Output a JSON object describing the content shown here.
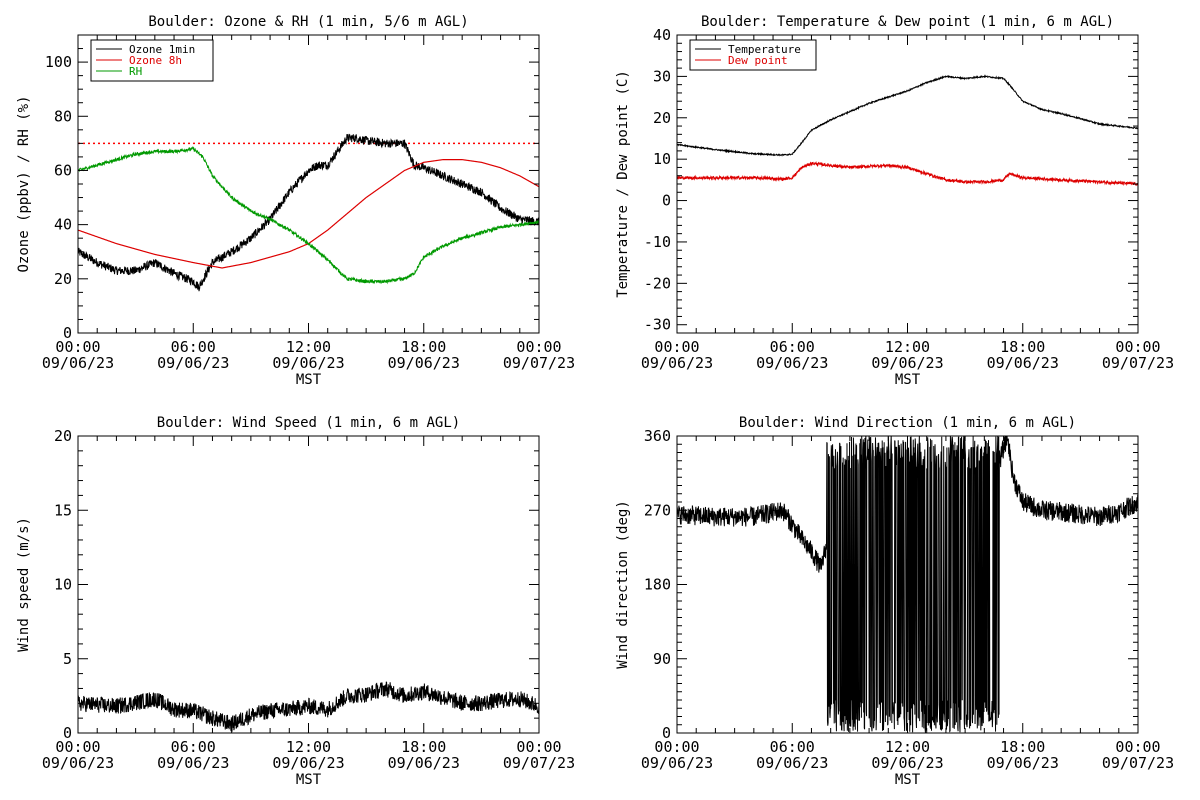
{
  "page": {
    "background": "#ffffff"
  },
  "chart_data": [
    {
      "id": "ozone_rh",
      "type": "line",
      "title": "Boulder: Ozone & RH (1 min, 5/6 m AGL)",
      "ylabel": "Ozone (ppbv) / RH (%)",
      "xlabel": "MST",
      "ylim": [
        0,
        110
      ],
      "yticks": [
        0,
        20,
        40,
        60,
        80,
        100
      ],
      "yminor": 5,
      "xlim": [
        0,
        24
      ],
      "xticks": [
        {
          "x": 0,
          "time": "00:00",
          "date": "09/06/23"
        },
        {
          "x": 6,
          "time": "06:00",
          "date": "09/06/23"
        },
        {
          "x": 12,
          "time": "12:00",
          "date": "09/06/23"
        },
        {
          "x": 18,
          "time": "18:00",
          "date": "09/06/23"
        },
        {
          "x": 24,
          "time": "00:00",
          "date": "09/07/23"
        }
      ],
      "legend_position": "top-left",
      "hline": {
        "y": 70,
        "color": "#ff0000",
        "style": "dotted"
      },
      "series": [
        {
          "name": "Ozone 1min",
          "color": "#000000",
          "noise": 1.6,
          "points": [
            [
              0,
              30
            ],
            [
              1,
              26
            ],
            [
              2,
              23
            ],
            [
              3,
              23
            ],
            [
              4,
              26
            ],
            [
              5,
              22
            ],
            [
              6,
              19
            ],
            [
              6.3,
              17
            ],
            [
              7,
              26
            ],
            [
              8,
              30
            ],
            [
              9,
              35
            ],
            [
              10,
              42
            ],
            [
              11,
              52
            ],
            [
              12,
              60
            ],
            [
              12.5,
              62
            ],
            [
              13,
              62
            ],
            [
              13.5,
              67
            ],
            [
              14,
              72
            ],
            [
              14.5,
              72
            ],
            [
              15,
              71
            ],
            [
              16,
              70
            ],
            [
              17,
              70
            ],
            [
              17.5,
              62
            ],
            [
              18,
              61
            ],
            [
              19,
              58
            ],
            [
              20,
              55
            ],
            [
              21,
              52
            ],
            [
              22,
              46
            ],
            [
              23,
              42
            ],
            [
              24,
              41
            ]
          ]
        },
        {
          "name": "Ozone 8h",
          "color": "#dd0000",
          "noise": 0,
          "points": [
            [
              0,
              38
            ],
            [
              2,
              33
            ],
            [
              4,
              29
            ],
            [
              6,
              26
            ],
            [
              7.5,
              24
            ],
            [
              9,
              26
            ],
            [
              11,
              30
            ],
            [
              12,
              33
            ],
            [
              13,
              38
            ],
            [
              14,
              44
            ],
            [
              15,
              50
            ],
            [
              16,
              55
            ],
            [
              17,
              60
            ],
            [
              18,
              63
            ],
            [
              19,
              64
            ],
            [
              19.5,
              64
            ],
            [
              20,
              64
            ],
            [
              21,
              63
            ],
            [
              22,
              61
            ],
            [
              23,
              58
            ],
            [
              24,
              54
            ]
          ]
        },
        {
          "name": "RH",
          "color": "#009900",
          "noise": 0.6,
          "points": [
            [
              0,
              60
            ],
            [
              1,
              62
            ],
            [
              2,
              64
            ],
            [
              3,
              66
            ],
            [
              4,
              67
            ],
            [
              5,
              67
            ],
            [
              6,
              68
            ],
            [
              6.5,
              65
            ],
            [
              7,
              58
            ],
            [
              8,
              50
            ],
            [
              9,
              45
            ],
            [
              10,
              42
            ],
            [
              11,
              38
            ],
            [
              12,
              33
            ],
            [
              13,
              27
            ],
            [
              14,
              20
            ],
            [
              15,
              19
            ],
            [
              16,
              19
            ],
            [
              17,
              20
            ],
            [
              17.5,
              22
            ],
            [
              18,
              28
            ],
            [
              19,
              32
            ],
            [
              20,
              35
            ],
            [
              21,
              37
            ],
            [
              22,
              39
            ],
            [
              23,
              40
            ],
            [
              24,
              41
            ]
          ]
        }
      ]
    },
    {
      "id": "temp_dew",
      "type": "line",
      "title": "Boulder: Temperature & Dew point (1 min, 6 m AGL)",
      "ylabel": "Temperature / Dew point (C)",
      "xlabel": "MST",
      "ylim": [
        -32,
        40
      ],
      "yticks": [
        -30,
        -20,
        -10,
        0,
        10,
        20,
        30,
        40
      ],
      "yminor": 2,
      "xlim": [
        0,
        24
      ],
      "xticks": [
        {
          "x": 0,
          "time": "00:00",
          "date": "09/06/23"
        },
        {
          "x": 6,
          "time": "06:00",
          "date": "09/06/23"
        },
        {
          "x": 12,
          "time": "12:00",
          "date": "09/06/23"
        },
        {
          "x": 18,
          "time": "18:00",
          "date": "09/06/23"
        },
        {
          "x": 24,
          "time": "00:00",
          "date": "09/07/23"
        }
      ],
      "legend_position": "top-left",
      "series": [
        {
          "name": "Temperature",
          "color": "#000000",
          "noise": 0.15,
          "points": [
            [
              0,
              13.5
            ],
            [
              2,
              12.3
            ],
            [
              4,
              11.3
            ],
            [
              5.5,
              11
            ],
            [
              6,
              11.2
            ],
            [
              6.5,
              14
            ],
            [
              7,
              17
            ],
            [
              8,
              19.5
            ],
            [
              9,
              21.5
            ],
            [
              10,
              23.5
            ],
            [
              11,
              25
            ],
            [
              12,
              26.5
            ],
            [
              13,
              28.5
            ],
            [
              14,
              30
            ],
            [
              15,
              29.5
            ],
            [
              16,
              30
            ],
            [
              17,
              29.5
            ],
            [
              17.3,
              28
            ],
            [
              18,
              24
            ],
            [
              19,
              22
            ],
            [
              20,
              21
            ],
            [
              21,
              19.8
            ],
            [
              22,
              18.5
            ],
            [
              23,
              18
            ],
            [
              24,
              17.5
            ]
          ]
        },
        {
          "name": "Dew point",
          "color": "#dd0000",
          "noise": 0.35,
          "points": [
            [
              0,
              5.5
            ],
            [
              2,
              5.5
            ],
            [
              4,
              5.5
            ],
            [
              5.5,
              5.2
            ],
            [
              6,
              5.5
            ],
            [
              6.5,
              8
            ],
            [
              7,
              9
            ],
            [
              8,
              8.5
            ],
            [
              9,
              8
            ],
            [
              10,
              8.3
            ],
            [
              11,
              8.5
            ],
            [
              12,
              8
            ],
            [
              13,
              6.5
            ],
            [
              14,
              5
            ],
            [
              15,
              4.5
            ],
            [
              16,
              4.5
            ],
            [
              17,
              5
            ],
            [
              17.3,
              6.5
            ],
            [
              18,
              5.5
            ],
            [
              20,
              5
            ],
            [
              22,
              4.5
            ],
            [
              24,
              4
            ]
          ]
        }
      ]
    },
    {
      "id": "wind_speed",
      "type": "line",
      "title": "Boulder: Wind Speed (1 min, 6 m AGL)",
      "ylabel": "Wind speed (m/s)",
      "xlabel": "MST",
      "ylim": [
        0,
        20
      ],
      "yticks": [
        0,
        5,
        10,
        15,
        20
      ],
      "yminor": 1,
      "xlim": [
        0,
        24
      ],
      "xticks": [
        {
          "x": 0,
          "time": "00:00",
          "date": "09/06/23"
        },
        {
          "x": 6,
          "time": "06:00",
          "date": "09/06/23"
        },
        {
          "x": 12,
          "time": "12:00",
          "date": "09/06/23"
        },
        {
          "x": 18,
          "time": "18:00",
          "date": "09/06/23"
        },
        {
          "x": 24,
          "time": "00:00",
          "date": "09/07/23"
        }
      ],
      "series": [
        {
          "name": "",
          "color": "#000000",
          "noise": 0.55,
          "points": [
            [
              0,
              2
            ],
            [
              2,
              1.8
            ],
            [
              4,
              2.3
            ],
            [
              5,
              1.6
            ],
            [
              6,
              1.5
            ],
            [
              7,
              1
            ],
            [
              8,
              0.6
            ],
            [
              9,
              1.2
            ],
            [
              10,
              1.5
            ],
            [
              11,
              1.6
            ],
            [
              12,
              1.8
            ],
            [
              13,
              1.6
            ],
            [
              14,
              2.5
            ],
            [
              15,
              2.6
            ],
            [
              16,
              3
            ],
            [
              17,
              2.5
            ],
            [
              18,
              2.8
            ],
            [
              19,
              2.4
            ],
            [
              20,
              2
            ],
            [
              21,
              2
            ],
            [
              22,
              2.2
            ],
            [
              23,
              2.3
            ],
            [
              24,
              1.8
            ]
          ]
        }
      ]
    },
    {
      "id": "wind_dir",
      "type": "line",
      "title": "Boulder: Wind Direction (1 min, 6 m AGL)",
      "ylabel": "Wind direction (deg)",
      "xlabel": "MST",
      "ylim": [
        0,
        360
      ],
      "yticks": [
        0,
        90,
        180,
        270,
        360
      ],
      "yminor": 10,
      "xlim": [
        0,
        24
      ],
      "xticks": [
        {
          "x": 0,
          "time": "00:00",
          "date": "09/06/23"
        },
        {
          "x": 6,
          "time": "06:00",
          "date": "09/06/23"
        },
        {
          "x": 12,
          "time": "12:00",
          "date": "09/06/23"
        },
        {
          "x": 18,
          "time": "18:00",
          "date": "09/06/23"
        },
        {
          "x": 24,
          "time": "00:00",
          "date": "09/07/23"
        }
      ],
      "oscillation": {
        "start": 7.8,
        "end": 16.8,
        "min": 0,
        "max": 360
      },
      "series": [
        {
          "name": "",
          "color": "#000000",
          "noise": 12,
          "points": [
            [
              0,
              265
            ],
            [
              2,
              262
            ],
            [
              4,
              262
            ],
            [
              5.5,
              270
            ],
            [
              6.5,
              235
            ],
            [
              7,
              220
            ],
            [
              7.5,
              200
            ],
            [
              7.8,
              230
            ],
            [
              16.8,
              330
            ],
            [
              17.2,
              360
            ],
            [
              17.5,
              310
            ],
            [
              18,
              280
            ],
            [
              19,
              270
            ],
            [
              20,
              268
            ],
            [
              21,
              265
            ],
            [
              22,
              262
            ],
            [
              23,
              268
            ],
            [
              24,
              280
            ]
          ]
        }
      ]
    }
  ]
}
